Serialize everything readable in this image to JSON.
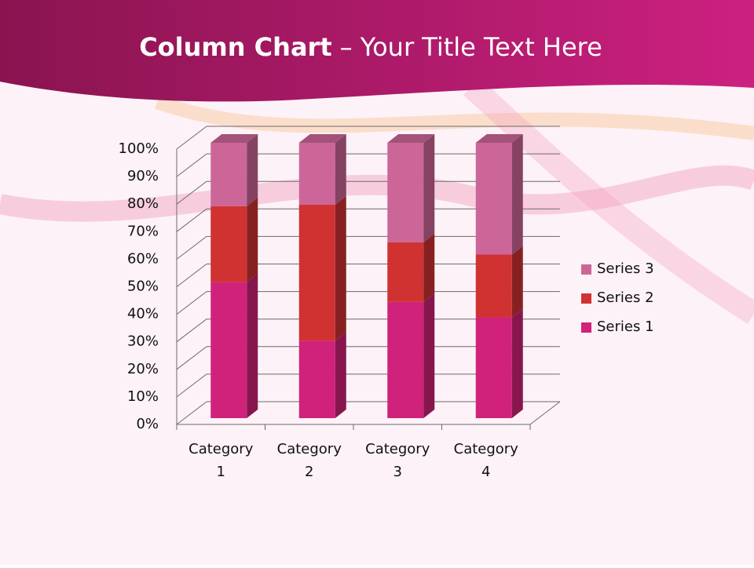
{
  "chart_data": {
    "type": "stacked-bar-3d",
    "title_emphasis": "Column Chart",
    "title": "– Your Title Text Here",
    "categories": [
      "Category 1",
      "Category 2",
      "Category 3",
      "Category 4"
    ],
    "series": [
      {
        "name": "Series 1",
        "color": "#d0227a",
        "values": [
          49.4,
          28.1,
          42.2,
          36.6
        ]
      },
      {
        "name": "Series 2",
        "color": "#d03232",
        "values": [
          27.6,
          49.4,
          21.7,
          22.8
        ]
      },
      {
        "name": "Series 3",
        "color": "#cc6699",
        "values": [
          23.0,
          22.5,
          36.1,
          40.6
        ]
      }
    ],
    "ylim": [
      0,
      100
    ],
    "yticks": [
      {
        "value": 0,
        "label": "0%"
      },
      {
        "value": 10,
        "label": "10%"
      },
      {
        "value": 20,
        "label": "20%"
      },
      {
        "value": 30,
        "label": "30%"
      },
      {
        "value": 40,
        "label": "40%"
      },
      {
        "value": 50,
        "label": "50%"
      },
      {
        "value": 60,
        "label": "60%"
      },
      {
        "value": 70,
        "label": "70%"
      },
      {
        "value": 80,
        "label": "80%"
      },
      {
        "value": 90,
        "label": "90%"
      },
      {
        "value": 100,
        "label": "100%"
      }
    ],
    "grid": true,
    "legend": "right"
  }
}
